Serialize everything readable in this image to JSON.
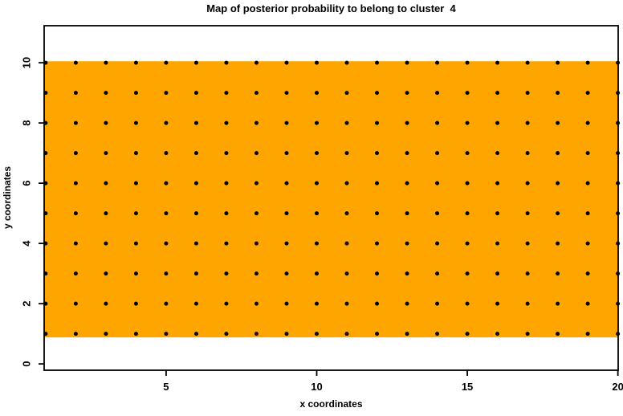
{
  "chart_data": {
    "type": "heatmap",
    "title": "Map of posterior probability to belong to cluster  4",
    "xlabel": "x coordinates",
    "ylabel": "y coordinates",
    "xlim": [
      0.95,
      20.01
    ],
    "ylim": [
      -0.21,
      11.23
    ],
    "xticks": [
      5,
      10,
      15,
      20
    ],
    "yticks": [
      0,
      2,
      4,
      6,
      8,
      10
    ],
    "grid": false,
    "legend": "none",
    "region": {
      "x_range": [
        0.95,
        20.01
      ],
      "y_range": [
        0.88,
        10.05
      ]
    },
    "grid_points": {
      "marker": "filled-circle",
      "radius": 2.5,
      "x_values": [
        1,
        2,
        3,
        4,
        5,
        6,
        7,
        8,
        9,
        10,
        11,
        12,
        13,
        14,
        15,
        16,
        17,
        18,
        19,
        20
      ],
      "y_values": [
        1,
        2,
        3,
        4,
        5,
        6,
        7,
        8,
        9,
        10
      ]
    },
    "colors": {
      "region": "#FFA500",
      "points": "#000000",
      "axis": "#000000",
      "background": "#FFFFFF"
    }
  }
}
